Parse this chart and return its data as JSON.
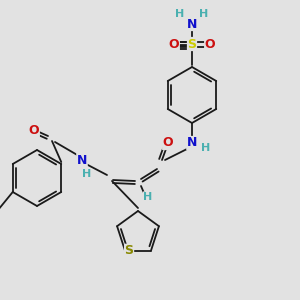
{
  "bg_color": "#e2e2e2",
  "bond_color": "#1a1a1a",
  "bond_width": 1.3,
  "atom_colors": {
    "N": "#1010cc",
    "O": "#cc1010",
    "S_sulfonamide": "#cccc00",
    "S_thiophene": "#888800",
    "H": "#4ab0b0",
    "C": "#1a1a1a"
  },
  "font_size_atom": 8.5,
  "font_size_H": 7.5
}
